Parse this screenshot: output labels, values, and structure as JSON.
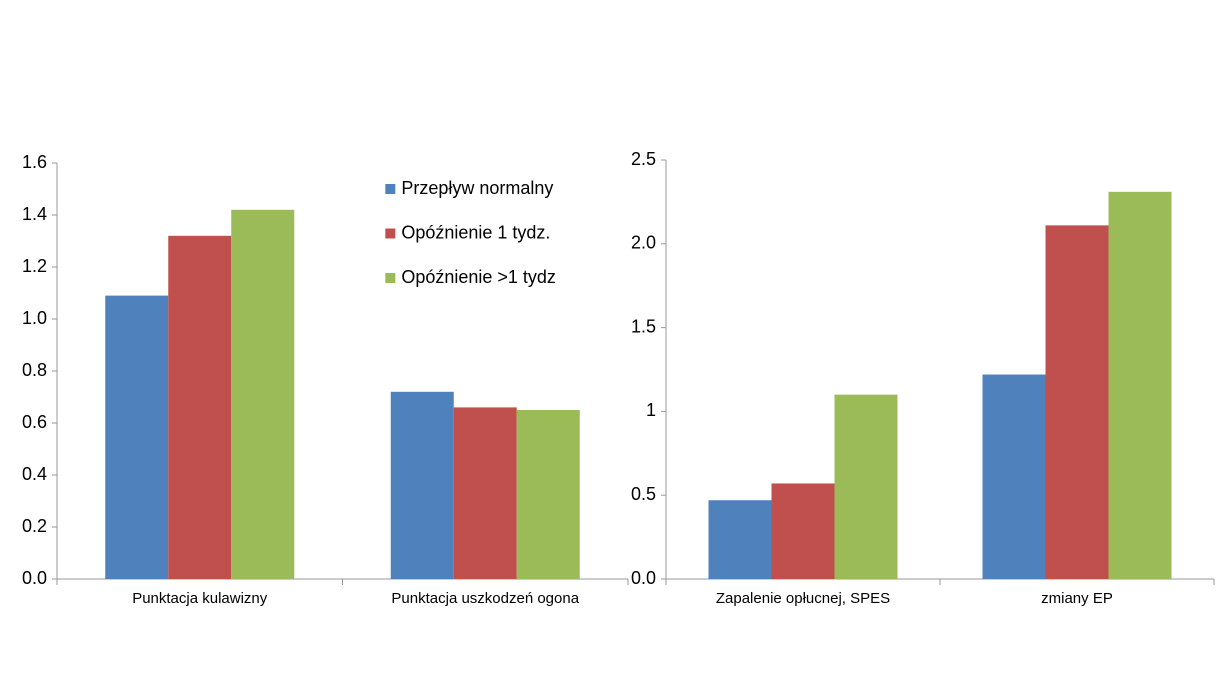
{
  "chart_data": [
    {
      "type": "bar",
      "categories": [
        "Punktacja kulawizny",
        "Punktacja uszkodzeń ogona"
      ],
      "series": [
        {
          "name": "Przepływ normalny",
          "color": "#4f81bd",
          "values": [
            1.09,
            0.72
          ]
        },
        {
          "name": "Opóźnienie 1 tydz.",
          "color": "#c0504d",
          "values": [
            1.32,
            0.66
          ]
        },
        {
          "name": "Opóźnienie >1 tydz",
          "color": "#9bbb59",
          "values": [
            1.42,
            0.65
          ]
        }
      ],
      "ylim": [
        0,
        1.6
      ],
      "yticks": [
        {
          "value": 0,
          "label": "0.0"
        },
        0.2,
        0.4,
        0.6,
        0.8,
        {
          "value": 1,
          "label": "1.0"
        },
        1.2,
        1.4,
        1.6
      ],
      "legend": "upper right"
    },
    {
      "type": "bar",
      "categories": [
        "Zapalenie opłucnej, SPES",
        "zmiany EP"
      ],
      "series": [
        {
          "color": "#4f81bd",
          "values": [
            0.47,
            1.22
          ]
        },
        {
          "color": "#c0504d",
          "values": [
            0.57,
            2.11
          ]
        },
        {
          "color": "#9bbb59",
          "values": [
            1.1,
            2.31
          ]
        }
      ],
      "ylim": [
        0,
        2.5
      ],
      "yticks": [
        {
          "value": 0,
          "label": "0.0"
        },
        0.5,
        1,
        1.5,
        {
          "value": 2,
          "label": "2.0"
        },
        2.5
      ]
    }
  ]
}
